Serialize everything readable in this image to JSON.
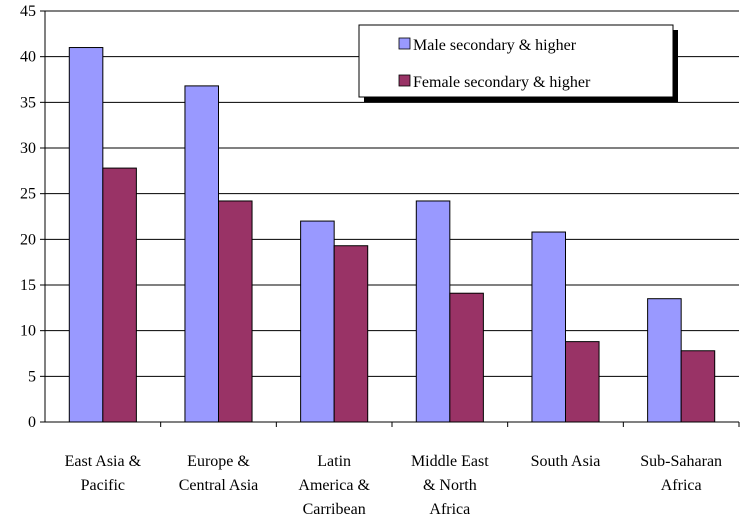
{
  "chart_data": {
    "type": "bar",
    "title": "",
    "xlabel": "",
    "ylabel": "",
    "ylim": [
      0,
      45
    ],
    "yticks": [
      0,
      5,
      10,
      15,
      20,
      25,
      30,
      35,
      40,
      45
    ],
    "grid": "horizontal",
    "legend_position": "top-right",
    "categories": [
      [
        "East Asia &",
        "Pacific"
      ],
      [
        "Europe &",
        "Central Asia"
      ],
      [
        "Latin",
        "America &",
        "Carribean"
      ],
      [
        "Middle East",
        "& North",
        "Africa"
      ],
      [
        "South Asia"
      ],
      [
        "Sub-Saharan",
        "Africa"
      ]
    ],
    "series": [
      {
        "name": "Male secondary & higher",
        "color": "#9999ff",
        "values": [
          41.0,
          36.8,
          22.0,
          24.2,
          20.8,
          13.5
        ]
      },
      {
        "name": "Female secondary & higher",
        "color": "#993366",
        "values": [
          27.8,
          24.2,
          19.3,
          14.1,
          8.8,
          7.8
        ]
      }
    ]
  }
}
